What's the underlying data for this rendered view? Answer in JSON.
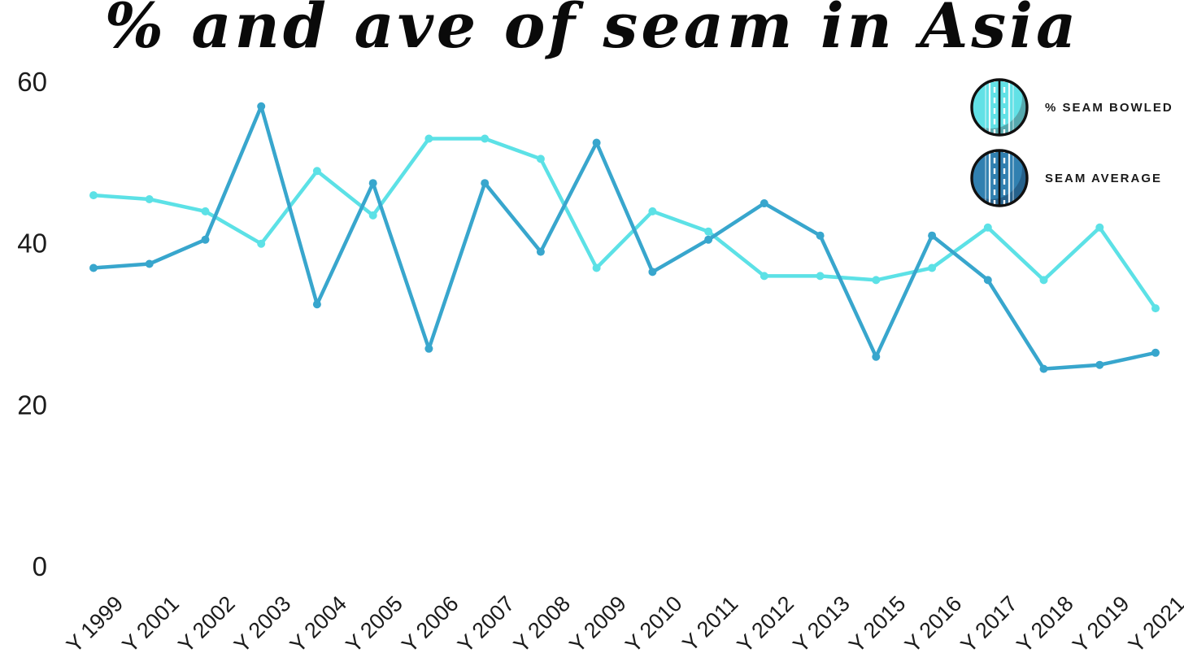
{
  "title": "% and ave of seam in Asia",
  "background_color": "#FFFFFF",
  "legend": {
    "position": "top-right",
    "items": [
      {
        "label": "% SEAM BOWLED",
        "icon": "cricket-ball-light-icon",
        "ball_color": "#62E1E6",
        "ball_shade": "#56A9AE",
        "outline": "#101010"
      },
      {
        "label": "SEAM AVERAGE",
        "icon": "cricket-ball-dark-icon",
        "ball_color": "#3180B0",
        "ball_shade": "#26618B",
        "outline": "#101010"
      }
    ]
  },
  "axes": {
    "y_tick_labels": [
      "0",
      "20",
      "40",
      "60"
    ],
    "x_label_rotation_deg": -45,
    "gridlines": false
  },
  "chart_data": {
    "type": "line",
    "title": "% and ave of seam in Asia",
    "categories": [
      "Y 1999",
      "Y 2001",
      "Y 2002",
      "Y 2003",
      "Y 2004",
      "Y 2005",
      "Y 2006",
      "Y 2007",
      "Y 2008",
      "Y 2009",
      "Y 2010",
      "Y 2011",
      "Y 2012",
      "Y 2013",
      "Y 2015",
      "Y 2016",
      "Y 2017",
      "Y 2018",
      "Y 2019",
      "Y 2021"
    ],
    "series": [
      {
        "name": "% SEAM BOWLED",
        "color": "#5CE1E6",
        "values": [
          46,
          45.5,
          44,
          40,
          49,
          43.5,
          53,
          53,
          50.5,
          37,
          44,
          41.5,
          36,
          36,
          35.5,
          37,
          42,
          35.5,
          42,
          32
        ]
      },
      {
        "name": "SEAM AVERAGE",
        "color": "#38A6CD",
        "values": [
          37,
          37.5,
          40.5,
          57,
          32.5,
          47.5,
          27,
          47.5,
          39,
          52.5,
          36.5,
          40.5,
          45,
          41,
          26,
          41,
          35.5,
          24.5,
          25,
          26.5
        ]
      }
    ],
    "ylim": [
      0,
      60
    ],
    "yticks": [
      0,
      20,
      40,
      60
    ],
    "grid": false,
    "legend_position": "top-right",
    "marker": "circle",
    "xlabel": "",
    "ylabel": ""
  }
}
